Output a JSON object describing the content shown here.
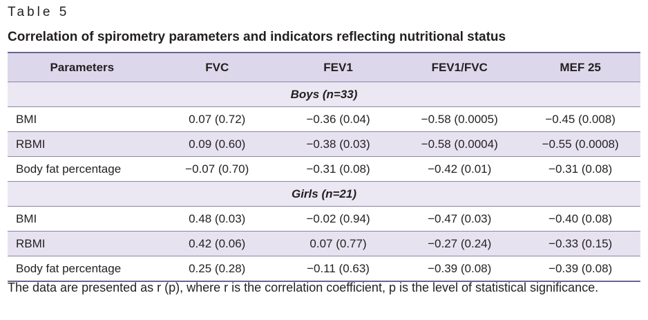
{
  "table_label": "Table 5",
  "title": "Correlation of spirometry parameters and indicators reflecting nutritional status",
  "columns": [
    "Parameters",
    "FVC",
    "FEV1",
    "FEV1/FVC",
    "MEF 25"
  ],
  "groups": [
    {
      "label": "Boys (n=33)",
      "rows": [
        {
          "param": "BMI",
          "fvc": "0.07 (0.72)",
          "fev1": "−0.36 (0.04)",
          "ratio": "−0.58 (0.0005)",
          "mef25": "−0.45 (0.008)"
        },
        {
          "param": "RBMI",
          "fvc": "0.09 (0.60)",
          "fev1": "−0.38 (0.03)",
          "ratio": "−0.58 (0.0004)",
          "mef25": "−0.55 (0.0008)"
        },
        {
          "param": "Body fat percentage",
          "fvc": "−0.07 (0.70)",
          "fev1": "−0.31 (0.08)",
          "ratio": "−0.42 (0.01)",
          "mef25": "−0.31 (0.08)"
        }
      ]
    },
    {
      "label": "Girls (n=21)",
      "rows": [
        {
          "param": "BMI",
          "fvc": "0.48 (0.03)",
          "fev1": "−0.02 (0.94)",
          "ratio": "−0.47 (0.03)",
          "mef25": "−0.40 (0.08)"
        },
        {
          "param": "RBMI",
          "fvc": "0.42 (0.06)",
          "fev1": "0.07 (0.77)",
          "ratio": "−0.27 (0.24)",
          "mef25": "−0.33 (0.15)"
        },
        {
          "param": "Body fat percentage",
          "fvc": "0.25 (0.28)",
          "fev1": "−0.11 (0.63)",
          "ratio": "−0.39 (0.08)",
          "mef25": "−0.39 (0.08)"
        }
      ]
    }
  ],
  "footnote": "The data are presented as r (p), where r is the correlation coefficient, p is the level of statistical significance.",
  "colors": {
    "header_bg": "#dcd7ea",
    "stripe_bg": "#e6e2f0",
    "rule": "#8a84a8"
  }
}
